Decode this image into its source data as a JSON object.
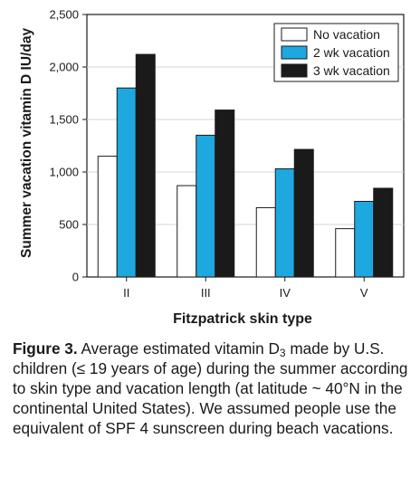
{
  "colors": {
    "no_vacation": "#ffffff",
    "two_week_vacation": "#1ea8e0",
    "three_week_vacation": "#1a1a1a",
    "gridline": "#d6d6d6"
  },
  "chart_data": {
    "type": "bar",
    "ylabel": "Summer vacation vitamin D IU/day",
    "xlabel": "Fitzpatrick skin type",
    "categories": [
      "II",
      "III",
      "IV",
      "V"
    ],
    "ylim": [
      0,
      2500
    ],
    "yticks": [
      "0",
      "500",
      "1,000",
      "1,500",
      "2,000",
      "2,500"
    ],
    "ytick_values": [
      0,
      500,
      1000,
      1500,
      2000,
      2500
    ],
    "grid": "horizontal",
    "legend_position": "top-right",
    "series": [
      {
        "name": "No vacation",
        "values": [
          1150,
          870,
          660,
          460
        ],
        "color": "#ffffff"
      },
      {
        "name": "2 wk vacation",
        "values": [
          1800,
          1350,
          1030,
          720
        ],
        "color": "#1ea8e0"
      },
      {
        "name": "3 wk vacation",
        "values": [
          2120,
          1590,
          1215,
          845
        ],
        "color": "#1a1a1a"
      }
    ]
  },
  "caption": {
    "label": "Figure 3.",
    "text_part1": " Average estimated vitamin D",
    "subscript": "3",
    "text_part2": " made by U.S. children (≤ 19 years of age) during the summer according to skin type and vacation length (at latitude ~ 40°N in the continental United States). We assumed people use the equivalent of SPF 4 sunscreen during beach vacations."
  }
}
